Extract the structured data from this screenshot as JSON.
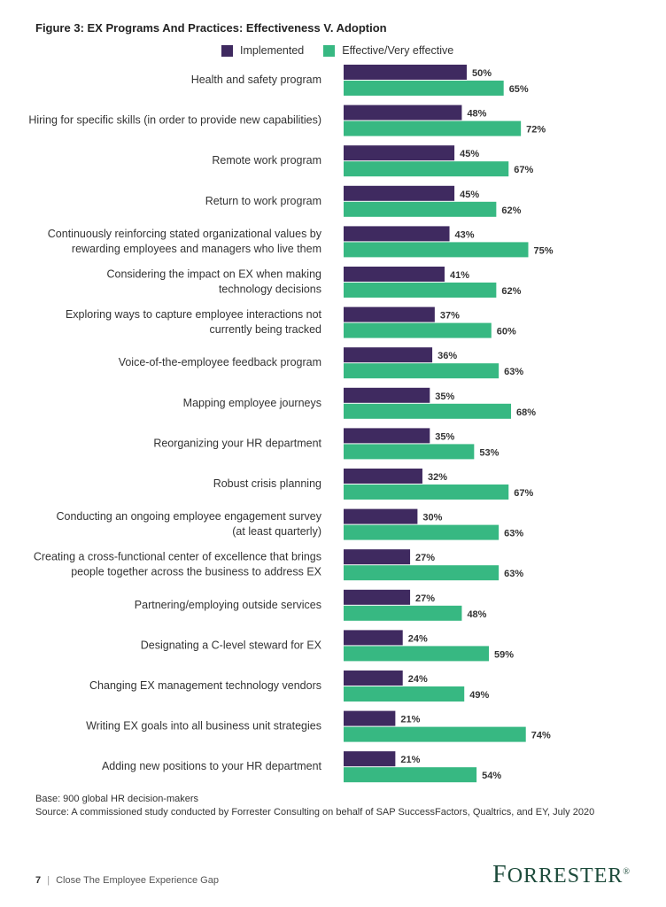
{
  "title": "Figure 3: EX Programs And Practices: Effectiveness V. Adoption",
  "legend": {
    "implemented": "Implemented",
    "effective": "Effective/Very effective"
  },
  "colors": {
    "implemented": "#3f2a60",
    "effective": "#37b882"
  },
  "chart_data": {
    "type": "bar",
    "orientation": "horizontal",
    "categories": [
      [
        "Health and safety program"
      ],
      [
        "Hiring for specific skills (in order to provide new capabilities)"
      ],
      [
        "Remote work program"
      ],
      [
        "Return to work program"
      ],
      [
        "Continuously reinforcing stated organizational values by",
        "rewarding employees and managers who live them"
      ],
      [
        "Considering the impact on EX when making",
        "technology decisions"
      ],
      [
        "Exploring ways to capture employee interactions not",
        "currently being tracked"
      ],
      [
        "Voice-of-the-employee feedback program"
      ],
      [
        "Mapping employee journeys"
      ],
      [
        "Reorganizing your HR department"
      ],
      [
        "Robust crisis planning"
      ],
      [
        "Conducting an ongoing employee engagement survey",
        "(at least quarterly)"
      ],
      [
        "Creating a cross-functional center of excellence that brings",
        "people together across the business to address EX"
      ],
      [
        "Partnering/employing outside services"
      ],
      [
        "Designating a C-level steward for EX"
      ],
      [
        "Changing EX management technology vendors"
      ],
      [
        "Writing EX goals into all business unit strategies"
      ],
      [
        "Adding new positions to your HR department"
      ]
    ],
    "series": [
      {
        "name": "Implemented",
        "values": [
          50,
          48,
          45,
          45,
          43,
          41,
          37,
          36,
          35,
          35,
          32,
          30,
          27,
          27,
          24,
          24,
          21,
          21
        ]
      },
      {
        "name": "Effective/Very effective",
        "values": [
          65,
          72,
          67,
          62,
          75,
          62,
          60,
          63,
          68,
          53,
          67,
          63,
          63,
          48,
          59,
          49,
          74,
          54
        ]
      }
    ],
    "value_suffix": "%",
    "xlim": [
      0,
      100
    ]
  },
  "base_note": "Base: 900 global HR decision-makers",
  "source_note": "Source: A commissioned study conducted by Forrester Consulting on behalf of SAP SuccessFactors, Qualtrics, and EY, July 2020",
  "footer": {
    "page": "7",
    "separator": "|",
    "doc_title": "Close The Employee Experience Gap"
  },
  "logo": {
    "first": "F",
    "rest": "ORRESTER",
    "mark": "®"
  }
}
